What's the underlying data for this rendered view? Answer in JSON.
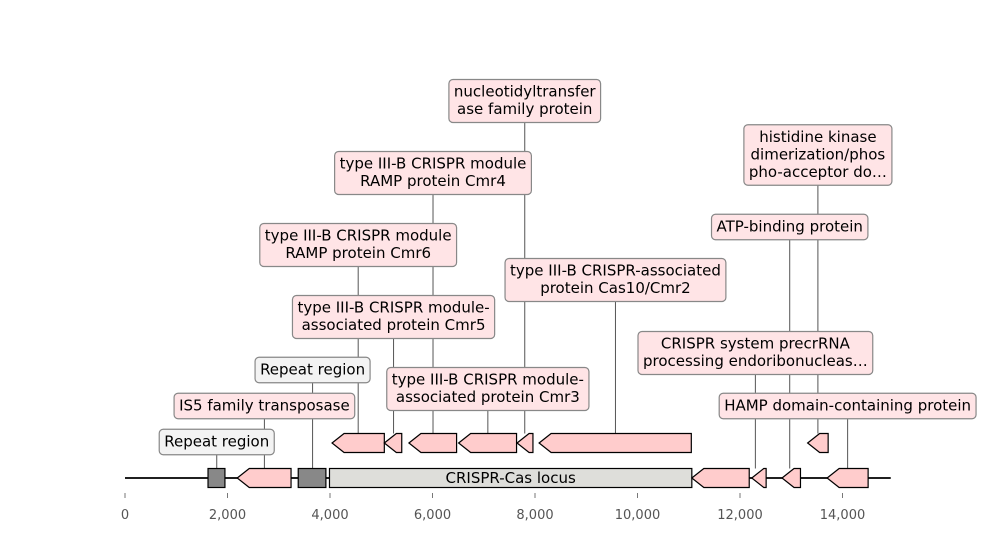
{
  "colors": {
    "gene_fill": "#ffcccc",
    "repeat_fill": "#888888",
    "locus_fill": "#dededa",
    "label_box_fill": "#ffe4e6",
    "repeat_label_fill": "#f3f3f3",
    "box_stroke": "#888888",
    "leader": "#555555",
    "axis": "#000000"
  },
  "axis": {
    "min": 0,
    "max": 15000,
    "ticks": [
      {
        "value": 0,
        "label": "0"
      },
      {
        "value": 2000,
        "label": "2,000"
      },
      {
        "value": 4000,
        "label": "4,000"
      },
      {
        "value": 6000,
        "label": "6,000"
      },
      {
        "value": 8000,
        "label": "8,000"
      },
      {
        "value": 10000,
        "label": "10,000"
      },
      {
        "value": 12000,
        "label": "12,000"
      },
      {
        "value": 14000,
        "label": "14,000"
      }
    ]
  },
  "features": [
    {
      "id": "repeat-1",
      "kind": "repeat",
      "start": 1620,
      "end": 1950,
      "strand": 0,
      "track": "main"
    },
    {
      "id": "is5-transposase",
      "kind": "gene",
      "start": 2190,
      "end": 3240,
      "strand": -1,
      "track": "main"
    },
    {
      "id": "repeat-2",
      "kind": "repeat",
      "start": 3380,
      "end": 3920,
      "strand": 0,
      "track": "main"
    },
    {
      "id": "crispr-cas-locus",
      "kind": "locus",
      "start": 3990,
      "end": 11060,
      "strand": 0,
      "track": "main",
      "inline_label": "CRISPR-Cas locus"
    },
    {
      "id": "cmr6",
      "kind": "gene",
      "start": 4040,
      "end": 5060,
      "strand": -1,
      "track": "upper"
    },
    {
      "id": "cmr5",
      "kind": "gene",
      "start": 5060,
      "end": 5400,
      "strand": -1,
      "track": "upper"
    },
    {
      "id": "cmr4",
      "kind": "gene",
      "start": 5540,
      "end": 6470,
      "strand": -1,
      "track": "upper"
    },
    {
      "id": "cmr3",
      "kind": "gene",
      "start": 6510,
      "end": 7640,
      "strand": -1,
      "track": "upper"
    },
    {
      "id": "nucleotidyltransferase",
      "kind": "gene",
      "start": 7650,
      "end": 7960,
      "strand": -1,
      "track": "upper"
    },
    {
      "id": "cas10-cmr2",
      "kind": "gene",
      "start": 8080,
      "end": 11050,
      "strand": -1,
      "track": "upper"
    },
    {
      "id": "precrrna-endoribonuclease",
      "kind": "gene",
      "start": 11060,
      "end": 12180,
      "strand": -1,
      "track": "main"
    },
    {
      "id": "atp-binding",
      "kind": "gene",
      "start": 12230,
      "end": 12510,
      "strand": -1,
      "track": "main"
    },
    {
      "id": "histidine-kinase",
      "kind": "gene",
      "start": 13320,
      "end": 13720,
      "strand": -1,
      "track": "upper"
    },
    {
      "id": "small-gene",
      "kind": "gene",
      "start": 12820,
      "end": 13180,
      "strand": -1,
      "track": "main"
    },
    {
      "id": "hamp-domain",
      "kind": "gene",
      "start": 13700,
      "end": 14500,
      "strand": -1,
      "track": "main"
    }
  ],
  "labels": [
    {
      "feature": "repeat-1",
      "text": "Repeat region",
      "anchor": 1790,
      "level": 0,
      "kind": "repeat"
    },
    {
      "feature": "is5-transposase",
      "text": "IS5 family transposase",
      "anchor": 2720,
      "level": 1,
      "kind": "gene"
    },
    {
      "feature": "repeat-2",
      "text": "Repeat region",
      "anchor": 3660,
      "level": 2,
      "kind": "repeat"
    },
    {
      "feature": "cmr3",
      "text": "type III-B CRISPR module-\nassociated protein Cmr3",
      "anchor": 7080,
      "level": 3,
      "kind": "gene"
    },
    {
      "feature": "cmr5",
      "text": "type III-B CRISPR module-\nassociated protein Cmr5",
      "anchor": 5240,
      "level": 4,
      "kind": "gene"
    },
    {
      "feature": "cmr6",
      "text": "type III-B CRISPR module\nRAMP protein Cmr6",
      "anchor": 4550,
      "level": 5,
      "kind": "gene"
    },
    {
      "feature": "cmr4",
      "text": "type III-B CRISPR module\nRAMP protein Cmr4",
      "anchor": 6010,
      "level": 6,
      "kind": "gene"
    },
    {
      "feature": "nucleotidyltransferase",
      "text": "nucleotidyltransfer\nase family protein",
      "anchor": 7800,
      "level": 7,
      "kind": "gene"
    },
    {
      "feature": "cas10-cmr2",
      "text": "type III-B CRISPR-associated\nprotein Cas10/Cmr2",
      "anchor": 9570,
      "level": 8,
      "kind": "gene"
    },
    {
      "feature": "precrrna-endoribonuclease",
      "text": "CRISPR system precrRNA\nprocessing endoribonucleas…",
      "anchor": 12300,
      "level": 9,
      "kind": "gene"
    },
    {
      "feature": "atp-binding",
      "text": "ATP-binding protein",
      "anchor": 12970,
      "level": 10,
      "kind": "gene"
    },
    {
      "feature": "histidine-kinase",
      "text": "histidine kinase\ndimerization/phos\npho-acceptor do…",
      "anchor": 13520,
      "level": 11,
      "kind": "gene"
    },
    {
      "feature": "hamp-domain",
      "text": "HAMP domain-containing protein",
      "anchor": 14100,
      "level": 12,
      "kind": "gene"
    }
  ]
}
